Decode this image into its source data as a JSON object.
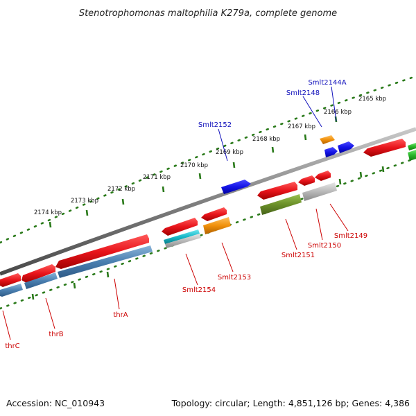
{
  "title": "Stenotrophomonas maltophilia K279a, complete genome",
  "footer": {
    "accession": "Accession: NC_010943",
    "summary": "Topology: circular; Length: 4,851,126 bp; Genes: 4,386"
  },
  "scale_labels": [
    "2165 kbp",
    "2166 kbp",
    "2167 kbp",
    "2168 kbp",
    "2169 kbp",
    "2170 kbp",
    "2171 kbp",
    "2172 kbp",
    "2173 kbp",
    "2174 kbp"
  ],
  "outer_gene_labels": [
    {
      "text": "Smlt2144A",
      "color": "#1010bb"
    },
    {
      "text": "Smlt2148",
      "color": "#1010bb"
    },
    {
      "text": "Smlt2152",
      "color": "#1010bb"
    }
  ],
  "inner_gene_labels": [
    {
      "text": "Smlt2149",
      "color": "#cc0000"
    },
    {
      "text": "Smlt2150",
      "color": "#cc0000"
    },
    {
      "text": "Smlt2151",
      "color": "#cc0000"
    },
    {
      "text": "Smlt2153",
      "color": "#cc0000"
    },
    {
      "text": "Smlt2154",
      "color": "#cc0000"
    },
    {
      "text": "thrA",
      "color": "#cc0000"
    },
    {
      "text": "thrB",
      "color": "#cc0000"
    },
    {
      "text": "thrC",
      "color": "#cc0000"
    }
  ],
  "colors": {
    "cds_red": "#e8141b",
    "blue_feature": "#1414e6",
    "orange_feature": "#f0900a",
    "steelblue_feature": "#4a7fb0",
    "olive_feature": "#6a8f28",
    "grey_feature": "#b0b0b0",
    "cyan_feature": "#18b8c8",
    "green_feature": "#28b428",
    "backbone": "#777777",
    "scale_dots": "#2a7a1a"
  }
}
